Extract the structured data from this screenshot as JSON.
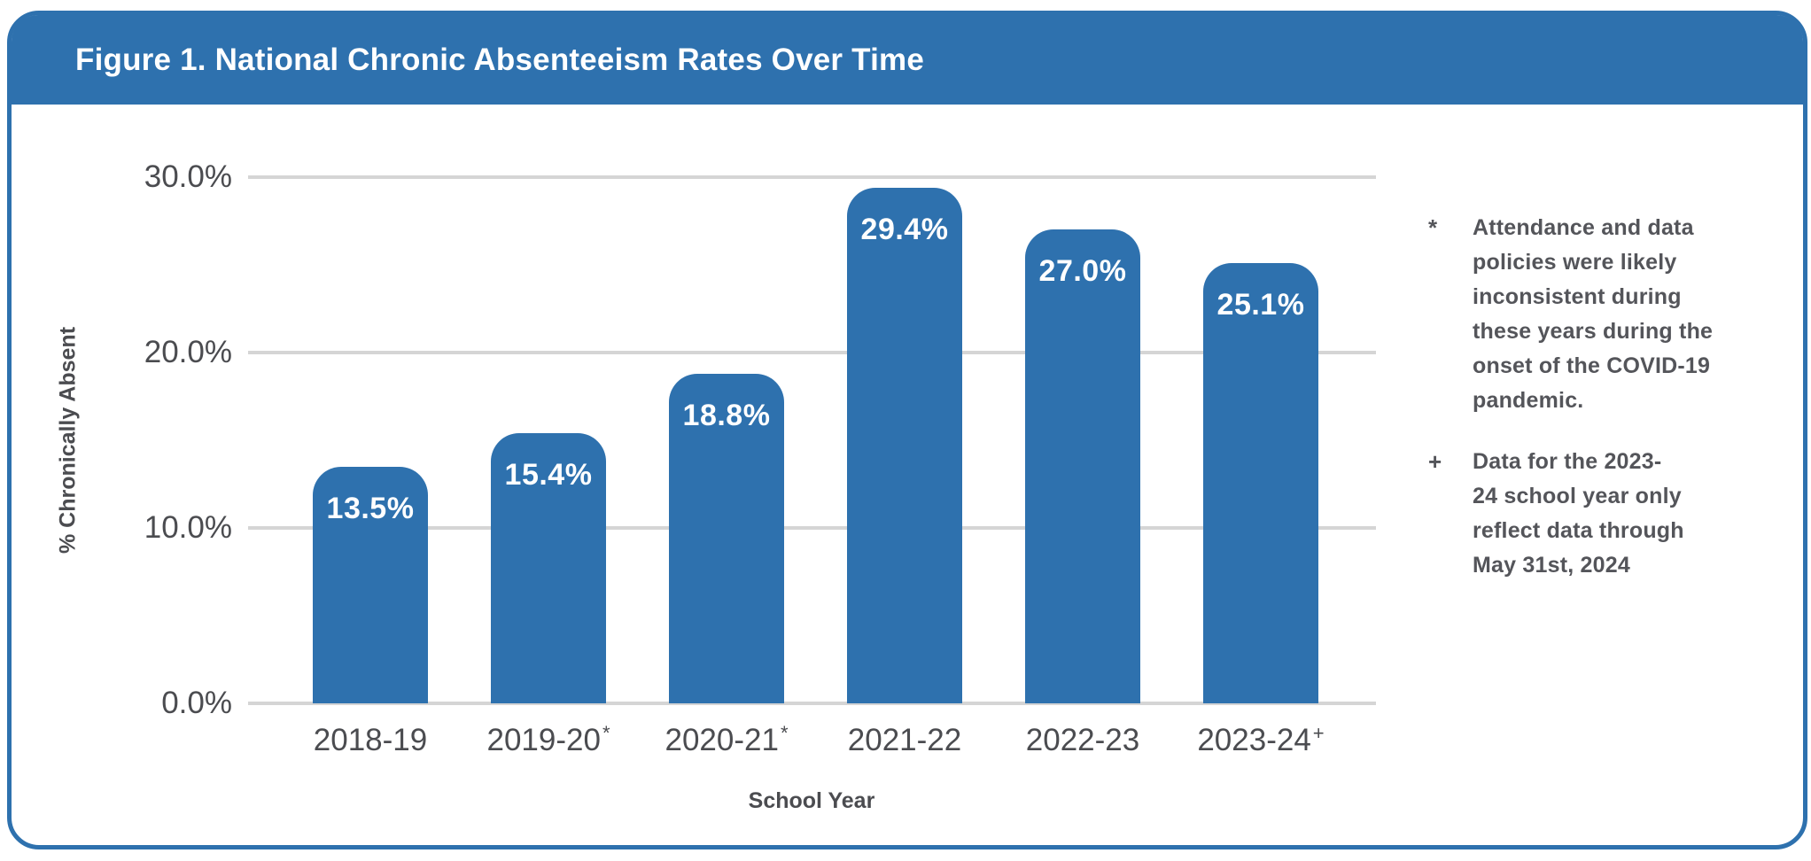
{
  "chart_data": {
    "type": "bar",
    "title": "Figure 1. National Chronic Absenteeism Rates Over Time",
    "categories": [
      "2018-19",
      "2019-20",
      "2020-21",
      "2021-22",
      "2022-23",
      "2023-24"
    ],
    "category_suffixes": [
      "",
      "*",
      "*",
      "",
      "",
      "+"
    ],
    "values": [
      13.5,
      15.4,
      18.8,
      29.4,
      27.0,
      25.1
    ],
    "value_labels": [
      "13.5%",
      "15.4%",
      "18.8%",
      "29.4%",
      "27.0%",
      "25.1%"
    ],
    "xlabel": "School Year",
    "ylabel": "% Chronically Absent",
    "ylim": [
      0,
      30
    ],
    "yticks": {
      "labels": [
        "30.0%",
        "20.0%",
        "10.0%",
        "0.0%"
      ],
      "values": [
        30,
        20,
        10,
        0
      ]
    },
    "grid": "horizontal",
    "legend": "none",
    "bar_color": "#2e71ae"
  },
  "footnotes": [
    {
      "marker": "*",
      "lines": [
        "Attendance and data",
        "policies were likely",
        "inconsistent during",
        "these years during the",
        "onset of the COVID-19",
        "pandemic."
      ]
    },
    {
      "marker": "+",
      "lines": [
        "Data for the 2023-",
        "24 school year only",
        "reflect data through",
        "May 31st, 2024"
      ]
    }
  ],
  "colors": {
    "accent_blue": "#2e71ae",
    "gridline": "#d5d5d5",
    "axis_text": "#4b4c50",
    "footnote_text": "#54555a",
    "card_background": "#ffffff"
  }
}
